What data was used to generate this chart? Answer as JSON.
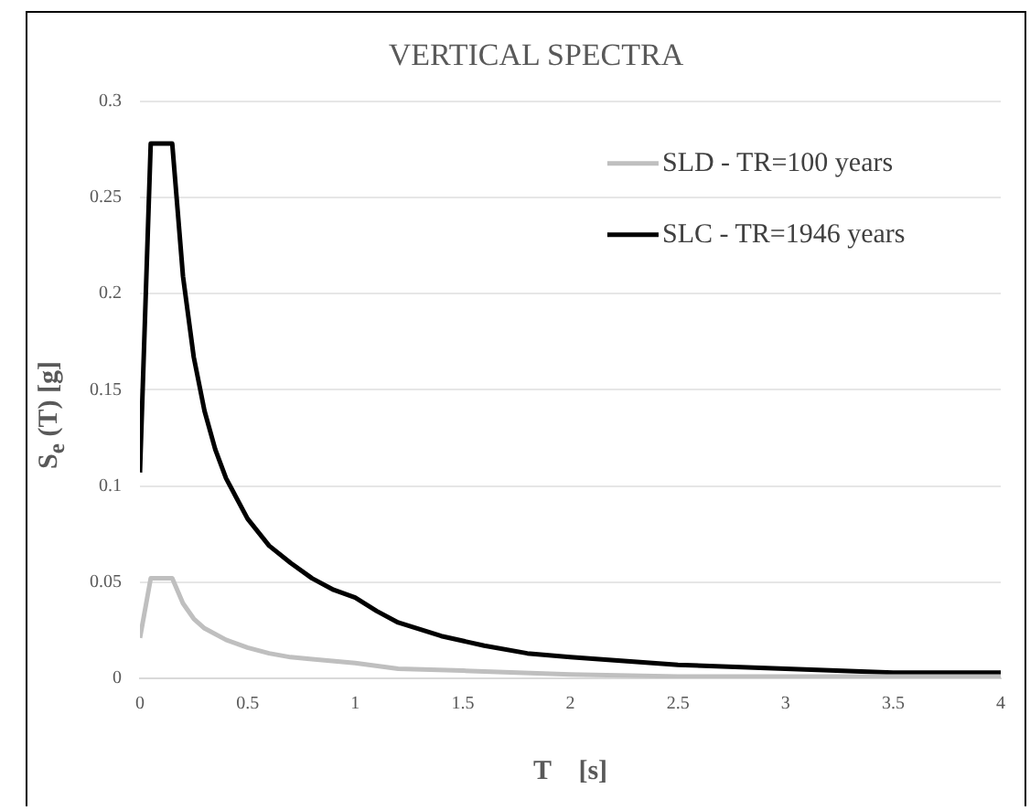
{
  "chart_data": {
    "type": "line",
    "title": "VERTICAL SPECTRA",
    "xlabel": "T    [s]",
    "ylabel": "S$_{e}$ (T)   [g]",
    "xlim": [
      0,
      4
    ],
    "xticks": [
      0,
      0.5,
      1,
      1.5,
      2,
      2.5,
      3,
      3.5,
      4
    ],
    "ylim": [
      0,
      0.3
    ],
    "yticks": [
      0,
      0.05,
      0.1,
      0.15,
      0.2,
      0.25,
      0.3
    ],
    "grid": "y",
    "legend": "top right",
    "marker": "none",
    "line_style": "solid",
    "series": [
      {
        "name": "SLD - TR=100 years",
        "color": "#bfbfbf",
        "x": [
          0,
          0.05,
          0.15,
          0.2,
          0.25,
          0.3,
          0.4,
          0.5,
          0.6,
          0.7,
          0.8,
          1,
          1.2,
          1.5,
          2,
          2.5,
          3,
          3.5,
          4
        ],
        "values": [
          0.021,
          0.052,
          0.052,
          0.039,
          0.031,
          0.026,
          0.02,
          0.016,
          0.013,
          0.011,
          0.01,
          0.008,
          0.005,
          0.004,
          0.002,
          0.001,
          0.001,
          0.001,
          0.001
        ]
      },
      {
        "name": "SLC - TR=1946 years",
        "color": "#000000",
        "x": [
          0,
          0.05,
          0.15,
          0.2,
          0.25,
          0.3,
          0.35,
          0.4,
          0.5,
          0.6,
          0.7,
          0.8,
          0.9,
          1,
          1.1,
          1.2,
          1.4,
          1.6,
          1.8,
          2,
          2.5,
          3,
          3.5,
          4
        ],
        "values": [
          0.107,
          0.278,
          0.278,
          0.209,
          0.167,
          0.139,
          0.119,
          0.104,
          0.083,
          0.069,
          0.06,
          0.052,
          0.046,
          0.042,
          0.035,
          0.029,
          0.022,
          0.017,
          0.013,
          0.011,
          0.007,
          0.005,
          0.003,
          0.003
        ]
      }
    ]
  }
}
